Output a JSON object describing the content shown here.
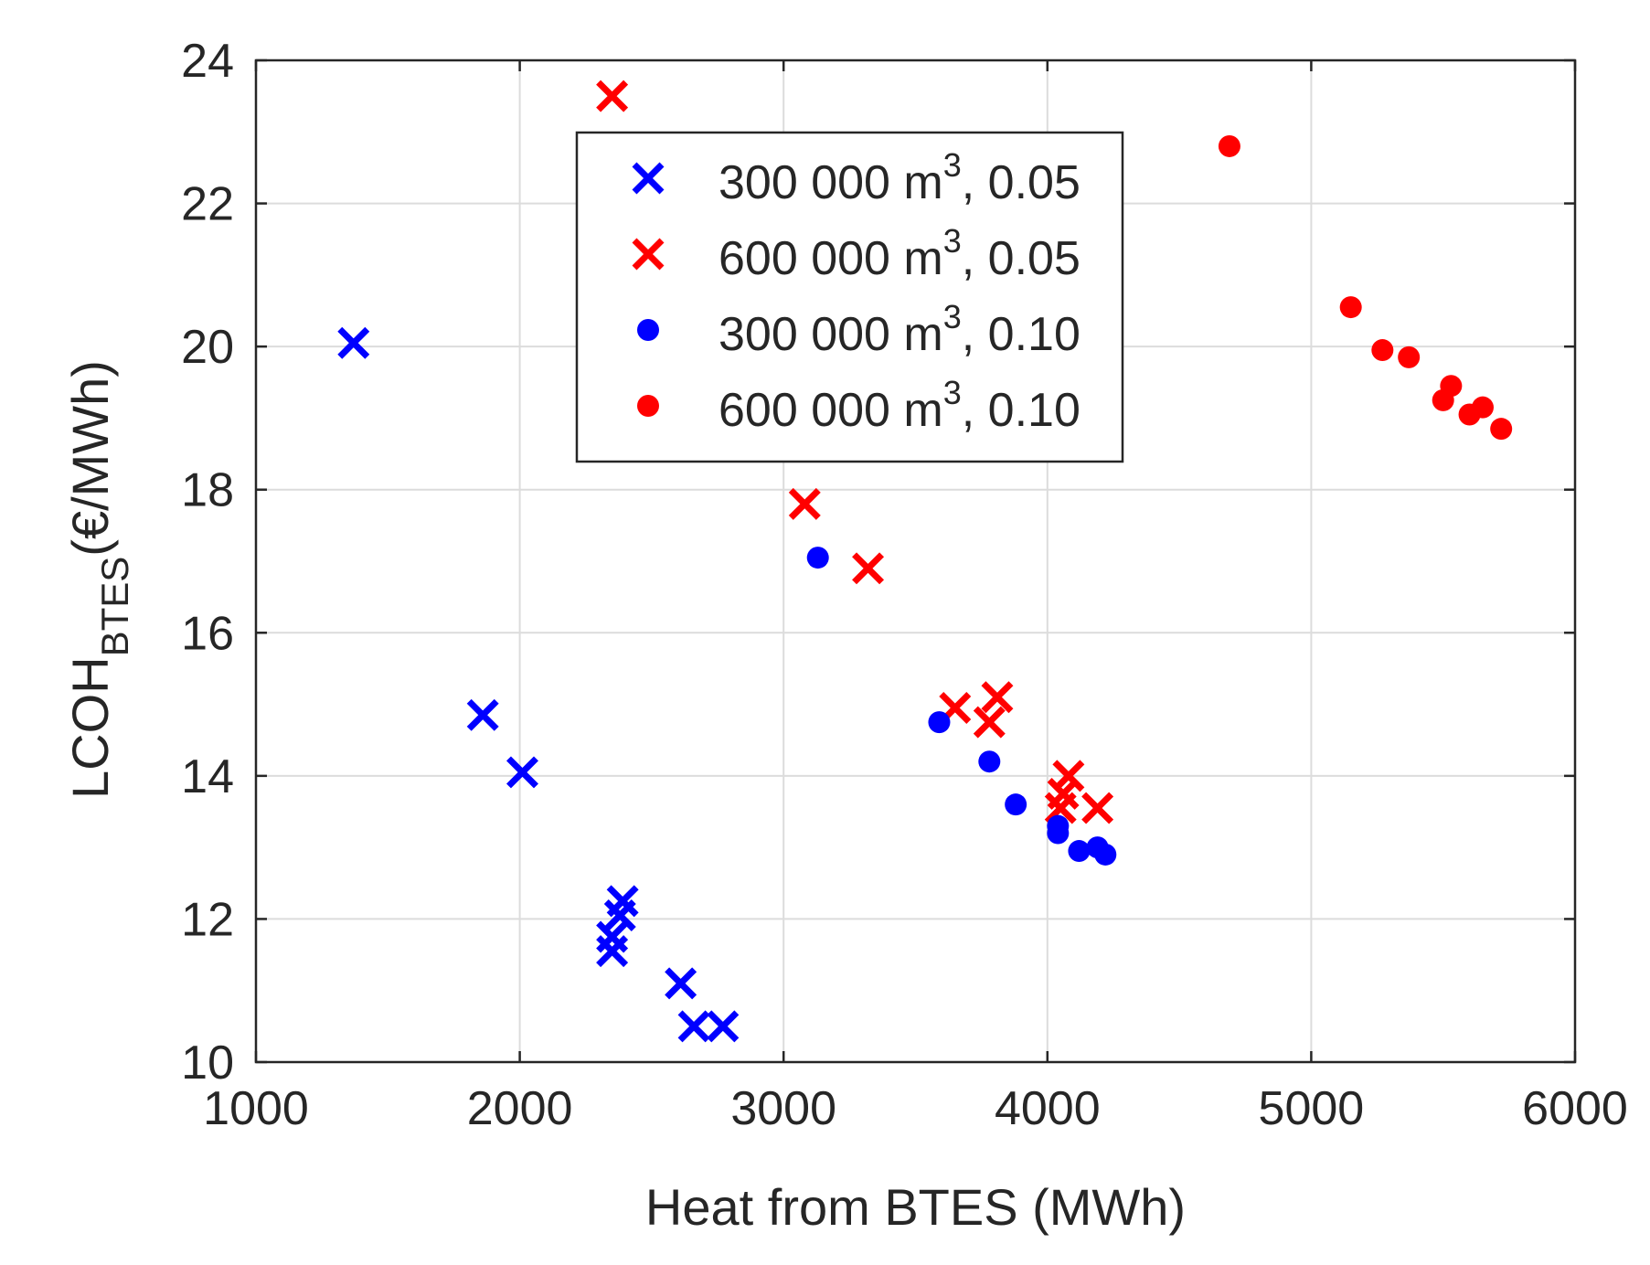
{
  "chart_data": {
    "type": "scatter",
    "title": "",
    "xlabel": "Heat from BTES (MWh)",
    "ylabel": {
      "main": "LCOH",
      "sub": "BTES",
      "unit": "(€/MWh)"
    },
    "xlim": [
      1000,
      6000
    ],
    "ylim": [
      10,
      24
    ],
    "xticks": [
      1000,
      2000,
      3000,
      4000,
      5000,
      6000
    ],
    "yticks": [
      10,
      12,
      14,
      16,
      18,
      20,
      22,
      24
    ],
    "grid": true,
    "legend_position": "top-center",
    "series": [
      {
        "name": "300 000 m3, 0.05",
        "label_main": "300 000 m",
        "label_sup": "3",
        "label_tail": ", 0.05",
        "marker": "x",
        "color": "#0000ff",
        "points": [
          [
            1370,
            20.05
          ],
          [
            1860,
            14.85
          ],
          [
            2010,
            14.05
          ],
          [
            2390,
            12.25
          ],
          [
            2380,
            12.05
          ],
          [
            2350,
            11.75
          ],
          [
            2350,
            11.55
          ],
          [
            2610,
            11.1
          ],
          [
            2660,
            10.5
          ],
          [
            2770,
            10.5
          ]
        ]
      },
      {
        "name": "600 000 m3, 0.05",
        "label_main": "600 000 m",
        "label_sup": "3",
        "label_tail": ", 0.05",
        "marker": "x",
        "color": "#ff0000",
        "points": [
          [
            2350,
            23.5
          ],
          [
            3080,
            17.8
          ],
          [
            3320,
            16.9
          ],
          [
            3650,
            14.95
          ],
          [
            3810,
            15.1
          ],
          [
            3780,
            14.75
          ],
          [
            4080,
            14.0
          ],
          [
            4060,
            13.75
          ],
          [
            4050,
            13.55
          ],
          [
            4190,
            13.55
          ]
        ]
      },
      {
        "name": "300 000 m3, 0.10",
        "label_main": "300 000 m",
        "label_sup": "3",
        "label_tail": ", 0.10",
        "marker": "o",
        "color": "#0000ff",
        "points": [
          [
            3130,
            17.05
          ],
          [
            3590,
            14.75
          ],
          [
            3780,
            14.2
          ],
          [
            3880,
            13.6
          ],
          [
            4040,
            13.3
          ],
          [
            4040,
            13.2
          ],
          [
            4120,
            12.95
          ],
          [
            4190,
            13.0
          ],
          [
            4220,
            12.9
          ]
        ]
      },
      {
        "name": "600 000 m3, 0.10",
        "label_main": "600 000 m",
        "label_sup": "3",
        "label_tail": ", 0.10",
        "marker": "o",
        "color": "#ff0000",
        "points": [
          [
            4690,
            22.8
          ],
          [
            5150,
            20.55
          ],
          [
            5270,
            19.95
          ],
          [
            5370,
            19.85
          ],
          [
            5530,
            19.45
          ],
          [
            5500,
            19.25
          ],
          [
            5600,
            19.05
          ],
          [
            5650,
            19.15
          ],
          [
            5720,
            18.85
          ]
        ]
      }
    ]
  }
}
